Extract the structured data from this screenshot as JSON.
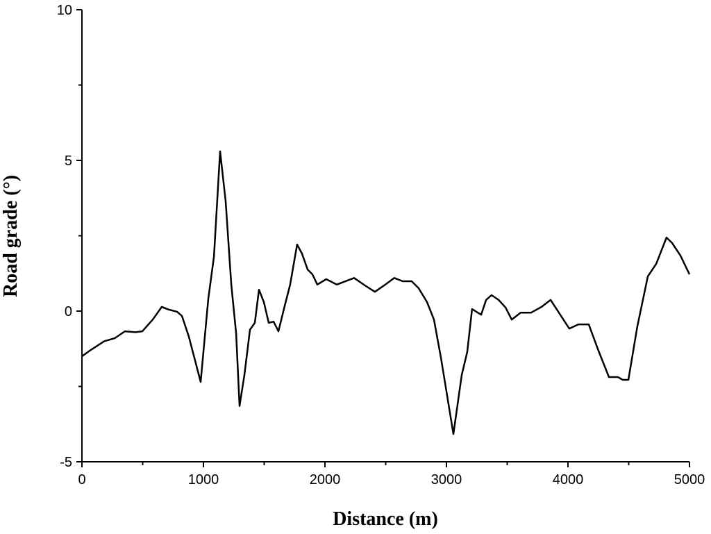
{
  "chart_data": {
    "type": "line",
    "xlabel": "Distance (m)",
    "ylabel": "Road grade (°)",
    "xlim": [
      0,
      5000
    ],
    "ylim": [
      -5,
      10
    ],
    "xticks": [
      0,
      1000,
      2000,
      3000,
      4000,
      5000
    ],
    "yticks": [
      -5,
      0,
      5,
      10
    ],
    "xminorticks": [
      500,
      1500,
      2500,
      3500,
      4500
    ],
    "yminorticks": [
      -2.5,
      2.5,
      7.5
    ],
    "series": [
      {
        "color": "#000000",
        "x": [
          0,
          69,
          126,
          183,
          269,
          354,
          440,
          497,
          583,
          657,
          714,
          783,
          823,
          880,
          977,
          1040,
          1086,
          1137,
          1183,
          1229,
          1269,
          1297,
          1337,
          1383,
          1423,
          1457,
          1497,
          1537,
          1577,
          1617,
          1669,
          1714,
          1771,
          1811,
          1857,
          1897,
          1937,
          2011,
          2097,
          2240,
          2337,
          2411,
          2497,
          2571,
          2640,
          2714,
          2771,
          2840,
          2897,
          2954,
          3057,
          3126,
          3171,
          3211,
          3257,
          3286,
          3326,
          3371,
          3429,
          3486,
          3537,
          3611,
          3697,
          3783,
          3857,
          3943,
          4011,
          4086,
          4171,
          4251,
          4337,
          4411,
          4451,
          4497,
          4571,
          4657,
          4726,
          4811,
          4857,
          4926,
          5000
        ],
        "values": [
          -1.5,
          -1.3,
          -1.15,
          -1.0,
          -0.9,
          -0.67,
          -0.7,
          -0.67,
          -0.28,
          0.14,
          0.05,
          -0.02,
          -0.16,
          -0.85,
          -2.35,
          0.41,
          1.8,
          5.3,
          3.64,
          0.88,
          -0.74,
          -3.15,
          -2.12,
          -0.62,
          -0.39,
          0.71,
          0.3,
          -0.39,
          -0.35,
          -0.67,
          0.18,
          0.88,
          2.21,
          1.91,
          1.38,
          1.22,
          0.88,
          1.06,
          0.88,
          1.1,
          0.83,
          0.64,
          0.88,
          1.1,
          0.99,
          0.99,
          0.76,
          0.3,
          -0.28,
          -1.54,
          -4.08,
          -2.12,
          -1.36,
          0.07,
          -0.05,
          -0.12,
          0.37,
          0.53,
          0.37,
          0.12,
          -0.28,
          -0.05,
          -0.05,
          0.14,
          0.37,
          -0.16,
          -0.58,
          -0.44,
          -0.44,
          -1.31,
          -2.19,
          -2.19,
          -2.28,
          -2.28,
          -0.51,
          1.15,
          1.57,
          2.44,
          2.26,
          1.84,
          1.22
        ]
      }
    ]
  }
}
